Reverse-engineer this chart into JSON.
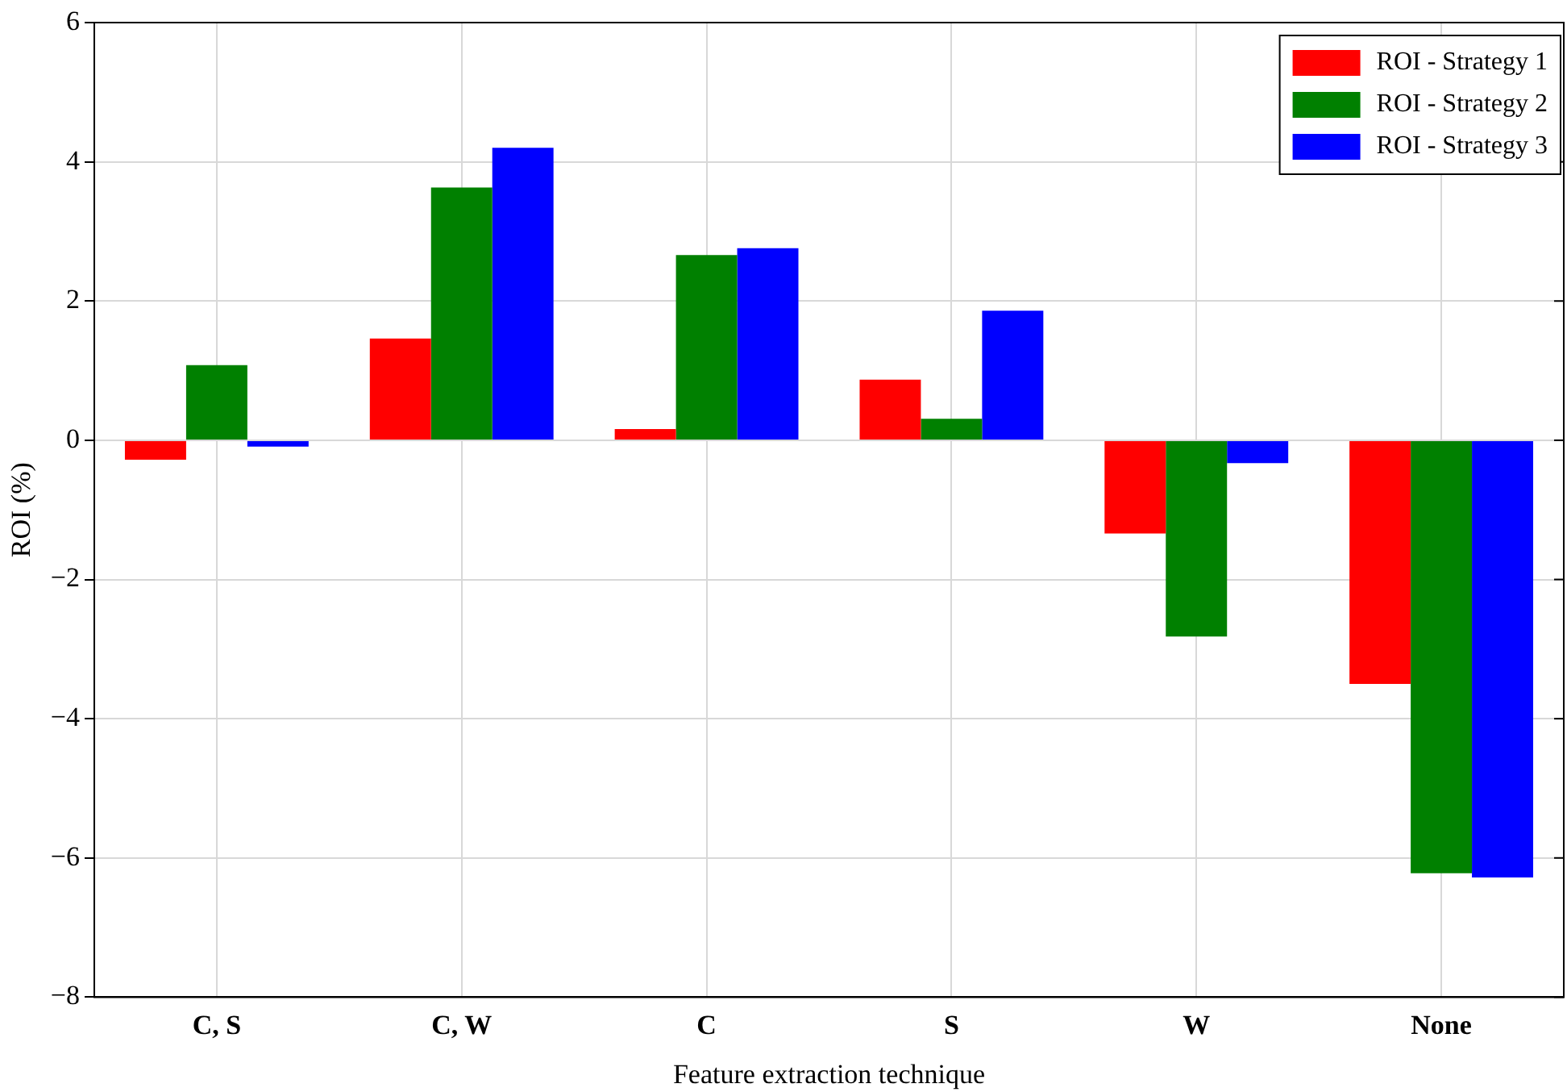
{
  "chart_data": {
    "type": "bar",
    "xlabel": "Feature extraction technique",
    "ylabel": "ROI (%)",
    "categories": [
      "C, S",
      "C, W",
      "C",
      "S",
      "W",
      "None"
    ],
    "series": [
      {
        "name": "ROI - Strategy 1",
        "color": "#ff0000",
        "values": [
          -0.28,
          1.46,
          0.16,
          0.87,
          -1.34,
          -3.5
        ]
      },
      {
        "name": "ROI - Strategy 2",
        "color": "#008000",
        "values": [
          1.08,
          3.63,
          2.66,
          0.31,
          -2.82,
          -6.22
        ]
      },
      {
        "name": "ROI - Strategy 3",
        "color": "#0000ff",
        "values": [
          -0.09,
          4.2,
          2.76,
          1.86,
          -0.33,
          -6.28
        ]
      }
    ],
    "ylim": [
      -8,
      6
    ],
    "yticks": [
      {
        "value": -8,
        "label": "−8"
      },
      {
        "value": -6,
        "label": "−6"
      },
      {
        "value": -4,
        "label": "−4"
      },
      {
        "value": -2,
        "label": "−2"
      },
      0,
      2,
      4,
      6
    ],
    "grid": true,
    "legend": "top right"
  }
}
